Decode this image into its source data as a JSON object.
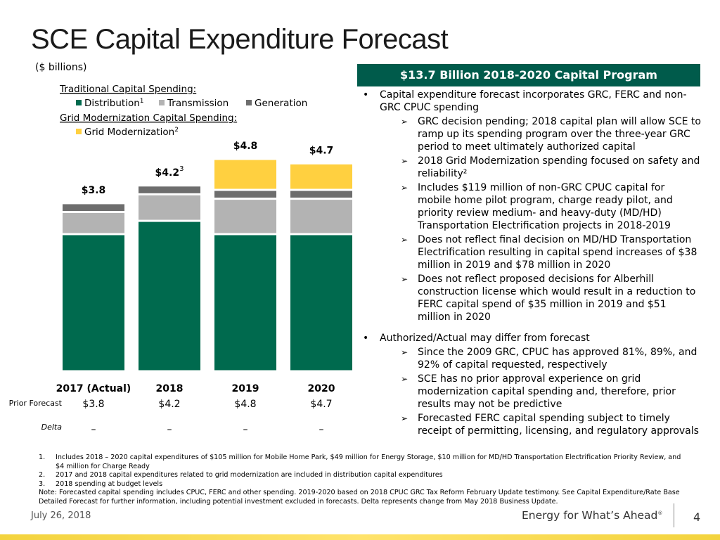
{
  "title": "SCE Capital Expenditure Forecast",
  "subtitle": "($ billions)",
  "chart_data": {
    "type": "bar",
    "stacked": true,
    "legend_headings": [
      "Traditional Capital Spending:",
      "Grid Modernization Capital Spending:"
    ],
    "categories": [
      "2017 (Actual)",
      "2018",
      "2019",
      "2020"
    ],
    "series": [
      {
        "name": "Distribution",
        "note": "1",
        "color": "#006a4e",
        "values": [
          3.1,
          3.4,
          3.1,
          3.1
        ]
      },
      {
        "name": "Transmission",
        "color": "#b3b3b3",
        "values": [
          0.5,
          0.6,
          0.8,
          0.8
        ]
      },
      {
        "name": "Generation",
        "color": "#6d6d6d",
        "values": [
          0.2,
          0.2,
          0.2,
          0.2
        ]
      },
      {
        "name": "Grid Modernization",
        "note": "2",
        "color": "#ffd040",
        "values": [
          0,
          0,
          0.7,
          0.6
        ]
      }
    ],
    "totals": {
      "values": [
        3.8,
        4.2,
        4.8,
        4.7
      ],
      "value_labels": [
        "$3.8",
        "$4.2",
        "$4.8",
        "$4.7"
      ],
      "notes": [
        null,
        "3",
        null,
        null
      ]
    }
  },
  "table": {
    "row_labels": [
      "Prior Forecast",
      "Delta"
    ],
    "rows": [
      [
        "$3.8",
        "$4.2",
        "$4.8",
        "$4.7"
      ],
      [
        "–",
        "–",
        "–",
        "–"
      ]
    ]
  },
  "panel": {
    "header": "$13.7 Billion 2018-2020 Capital Program",
    "bullets": [
      {
        "text": "Capital expenditure forecast incorporates GRC, FERC and non-GRC CPUC spending",
        "items": [
          "GRC decision pending; 2018 capital plan will allow SCE to ramp up its spending program over the three-year GRC period to meet ultimately authorized capital",
          "2018 Grid Modernization spending focused on safety and reliability²",
          "Includes $119 million of non-GRC CPUC capital for mobile home pilot program, charge ready pilot, and priority review medium- and heavy-duty (MD/HD) Transportation Electrification projects in 2018-2019",
          "Does not reflect final decision on MD/HD Transportation Electrification resulting in capital spend increases of $38 million in 2019 and $78 million in 2020",
          "Does not reflect proposed decisions for Alberhill construction license which would result in a reduction to FERC capital spend of $35 million in 2019 and $51 million in 2020"
        ]
      },
      {
        "text": "Authorized/Actual may differ from forecast",
        "items": [
          "Since the 2009 GRC, CPUC has approved 81%, 89%, and 92% of capital requested, respectively",
          "SCE has no prior approval experience on grid modernization capital spending and, therefore, prior results may not be predictive",
          "Forecasted FERC capital spending subject to timely receipt of permitting, licensing, and regulatory approvals"
        ]
      }
    ]
  },
  "footnotes": [
    {
      "num": "1.",
      "text": "Includes 2018 – 2020 capital expenditures of $105 million for Mobile Home Park, $49 million for Energy Storage, $10 million for MD/HD Transportation Electrification Priority Review, and $4 million for Charge Ready"
    },
    {
      "num": "2.",
      "text": "2017 and 2018 capital expenditures related to grid modernization are included in distribution capital expenditures"
    },
    {
      "num": "3.",
      "text": "2018 spending at budget levels"
    },
    {
      "text": "Note: Forecasted capital spending includes CPUC, FERC and other spending. 2019-2020 based on 2018 CPUC GRC Tax Reform February Update testimony. See Capital Expenditure/Rate Base Detailed Forecast for further information, including potential investment excluded in forecasts. Delta represents change from May 2018 Business Update."
    }
  ],
  "footer": {
    "date": "July 26, 2018",
    "tagline": "Energy for What’s Ahead",
    "tagline_mark": "®",
    "page": "4"
  }
}
